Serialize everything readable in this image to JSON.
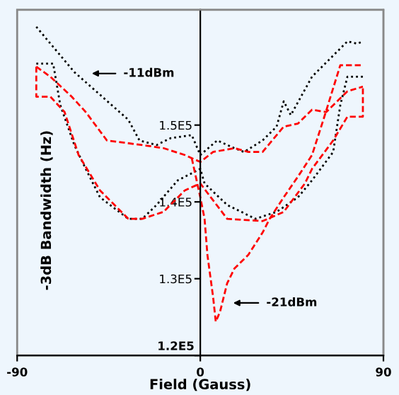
{
  "chart_data": {
    "type": "line",
    "xlabel": "Field (Gauss)",
    "ylabel": "-3dB Bandwidth (Hz)",
    "x": [
      -80.6,
      -61.9,
      -35.4,
      -29.9,
      -21.5,
      -14.6,
      -4.2,
      0,
      8.3,
      16.7,
      21.5,
      30.6,
      37.5,
      41,
      44.5,
      54.9,
      72.3,
      77.1,
      79.9
    ],
    "series": [
      {
        "color": "#000000",
        "line_style": "dotted",
        "values": [
          162800,
          156900,
          150700,
          148000,
          147400,
          148300,
          148700,
          146100,
          148000,
          147000,
          146500,
          148000,
          149800,
          153100,
          151300,
          156300,
          160900,
          160600,
          160900
        ]
      },
      {
        "color": "#000000",
        "line_style": "dotted",
        "x": [
          -80.6,
          -72.3,
          -68.8,
          -61.9,
          -56.3,
          -49.3,
          -35.4,
          -28.5,
          -21.5,
          -11.1,
          0,
          2.1,
          13.2,
          27.1,
          37.5,
          48,
          54.9,
          65.3,
          68.8,
          72.3,
          79.9
        ],
        "values": [
          158000,
          158000,
          152600,
          147400,
          144300,
          140600,
          137800,
          137800,
          139600,
          142800,
          144300,
          142400,
          139600,
          137800,
          138700,
          140600,
          142800,
          146500,
          152600,
          156300,
          156300
        ]
      },
      {
        "color": "#ff0000",
        "line_style": "dashed",
        "x": [
          -80.6,
          -73.7,
          -63.2,
          -56.3,
          -45.9,
          -28.5,
          -18.1,
          -7.6,
          0,
          6.3,
          16.7,
          23.6,
          30.6,
          41,
          48,
          54.9,
          61.9,
          68.8,
          72.3,
          79.9
        ],
        "values": [
          157600,
          156300,
          153700,
          151700,
          148000,
          147400,
          147000,
          146100,
          145200,
          146500,
          147000,
          146500,
          146500,
          149800,
          150200,
          152000,
          151700,
          153500,
          154400,
          155000
        ]
      },
      {
        "color": "#ff0000",
        "line_style": "dashed",
        "x": [
          -80.6,
          -80.6,
          -73.7,
          -66.7,
          -59.8,
          -49.3,
          -35.4,
          -28.5,
          -18.1,
          -7.6,
          0,
          13.2,
          30.6,
          41,
          51.4,
          54.9,
          65.3,
          72.3,
          79.9,
          79.9
        ],
        "values": [
          157600,
          153700,
          153700,
          151700,
          146100,
          141500,
          137800,
          137800,
          138700,
          141500,
          142400,
          137800,
          137500,
          138700,
          142400,
          144300,
          148000,
          151100,
          151100,
          155000
        ]
      },
      {
        "color": "#ff0000",
        "line_style": "dashed",
        "x": [
          -4.2,
          0,
          2.1,
          3.5,
          6.3,
          7.6,
          9.7,
          13.2,
          16.7,
          23.6,
          30.6,
          34.1,
          41,
          48,
          54.9,
          60.5,
          68.8,
          72.3,
          79.9
        ],
        "values": [
          145700,
          140600,
          137800,
          133100,
          127600,
          124400,
          125700,
          129400,
          131300,
          133100,
          136000,
          137800,
          140600,
          143300,
          146100,
          150700,
          157800,
          157800,
          157800
        ]
      }
    ],
    "annotations": [
      "-11dBm",
      "-21dBm"
    ],
    "xlim": [
      -90,
      90
    ],
    "xticks": [
      -90,
      0,
      90
    ],
    "ylim": [
      120000,
      165000
    ],
    "yticks": [
      {
        "value": 120000,
        "label": "1.2E5"
      },
      {
        "value": 130000,
        "label": "1.3E5"
      },
      {
        "value": 140000,
        "label": "1.4E5"
      },
      {
        "value": 150000,
        "label": "1.5E5"
      }
    ],
    "grid": false,
    "legend": false,
    "marker": "none"
  }
}
